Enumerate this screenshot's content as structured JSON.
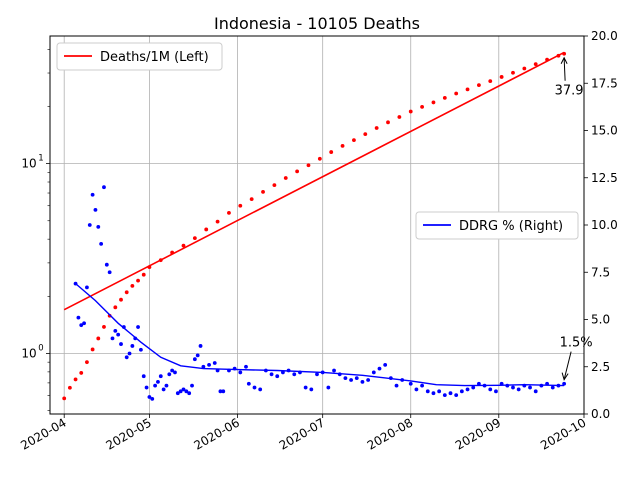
{
  "chart_data": {
    "type": "line",
    "title": "Indonesia - 10105 Deaths",
    "x_axis": {
      "type": "date",
      "range": [
        "2020-03-27",
        "2020-10-01"
      ],
      "ticks": [
        "2020-04-01",
        "2020-05-01",
        "2020-06-01",
        "2020-07-01",
        "2020-08-01",
        "2020-09-01",
        "2020-10-01"
      ],
      "tick_labels": [
        "2020-04",
        "2020-05",
        "2020-06",
        "2020-07",
        "2020-08",
        "2020-09",
        "2020-10"
      ]
    },
    "y_left": {
      "scale": "log",
      "range": [
        0.48,
        47
      ],
      "ticks": [
        1,
        10
      ],
      "tick_labels": [
        "10^0",
        "10^1"
      ]
    },
    "y_right": {
      "scale": "linear",
      "range": [
        0,
        20
      ],
      "ticks": [
        0,
        2.5,
        5,
        7.5,
        10,
        12.5,
        15,
        17.5,
        20
      ],
      "tick_labels": [
        "0.0",
        "2.5",
        "5.0",
        "7.5",
        "10.0",
        "12.5",
        "15.0",
        "17.5",
        "20.0"
      ]
    },
    "grid": true,
    "series": [
      {
        "name": "Deaths/1M (Left)",
        "axis": "left",
        "color": "#ff0000",
        "style": "line+points",
        "fit_line": {
          "x": [
            "2020-04-01",
            "2020-09-24"
          ],
          "y": [
            1.7,
            38.5
          ]
        },
        "points": [
          {
            "x": "2020-04-01",
            "y": 0.58
          },
          {
            "x": "2020-04-03",
            "y": 0.66
          },
          {
            "x": "2020-04-05",
            "y": 0.73
          },
          {
            "x": "2020-04-07",
            "y": 0.79
          },
          {
            "x": "2020-04-09",
            "y": 0.9
          },
          {
            "x": "2020-04-11",
            "y": 1.05
          },
          {
            "x": "2020-04-13",
            "y": 1.2
          },
          {
            "x": "2020-04-15",
            "y": 1.38
          },
          {
            "x": "2020-04-17",
            "y": 1.58
          },
          {
            "x": "2020-04-19",
            "y": 1.75
          },
          {
            "x": "2020-04-21",
            "y": 1.92
          },
          {
            "x": "2020-04-23",
            "y": 2.1
          },
          {
            "x": "2020-04-25",
            "y": 2.27
          },
          {
            "x": "2020-04-27",
            "y": 2.42
          },
          {
            "x": "2020-04-29",
            "y": 2.6
          },
          {
            "x": "2020-05-01",
            "y": 2.85
          },
          {
            "x": "2020-05-05",
            "y": 3.1
          },
          {
            "x": "2020-05-09",
            "y": 3.4
          },
          {
            "x": "2020-05-13",
            "y": 3.7
          },
          {
            "x": "2020-05-17",
            "y": 4.05
          },
          {
            "x": "2020-05-21",
            "y": 4.5
          },
          {
            "x": "2020-05-25",
            "y": 4.95
          },
          {
            "x": "2020-05-29",
            "y": 5.5
          },
          {
            "x": "2020-06-02",
            "y": 6.0
          },
          {
            "x": "2020-06-06",
            "y": 6.5
          },
          {
            "x": "2020-06-10",
            "y": 7.1
          },
          {
            "x": "2020-06-14",
            "y": 7.7
          },
          {
            "x": "2020-06-18",
            "y": 8.4
          },
          {
            "x": "2020-06-22",
            "y": 9.1
          },
          {
            "x": "2020-06-26",
            "y": 9.8
          },
          {
            "x": "2020-06-30",
            "y": 10.6
          },
          {
            "x": "2020-07-04",
            "y": 11.5
          },
          {
            "x": "2020-07-08",
            "y": 12.4
          },
          {
            "x": "2020-07-12",
            "y": 13.3
          },
          {
            "x": "2020-07-16",
            "y": 14.3
          },
          {
            "x": "2020-07-20",
            "y": 15.4
          },
          {
            "x": "2020-07-24",
            "y": 16.5
          },
          {
            "x": "2020-07-28",
            "y": 17.6
          },
          {
            "x": "2020-08-01",
            "y": 18.8
          },
          {
            "x": "2020-08-05",
            "y": 19.9
          },
          {
            "x": "2020-08-09",
            "y": 21.0
          },
          {
            "x": "2020-08-13",
            "y": 22.2
          },
          {
            "x": "2020-08-17",
            "y": 23.4
          },
          {
            "x": "2020-08-21",
            "y": 24.6
          },
          {
            "x": "2020-08-25",
            "y": 25.9
          },
          {
            "x": "2020-08-29",
            "y": 27.2
          },
          {
            "x": "2020-09-02",
            "y": 28.6
          },
          {
            "x": "2020-09-06",
            "y": 30.1
          },
          {
            "x": "2020-09-10",
            "y": 31.7
          },
          {
            "x": "2020-09-14",
            "y": 33.4
          },
          {
            "x": "2020-09-18",
            "y": 35.3
          },
          {
            "x": "2020-09-22",
            "y": 37.0
          },
          {
            "x": "2020-09-24",
            "y": 37.9
          }
        ]
      },
      {
        "name": "DDRG % (Right)",
        "axis": "right",
        "color": "#0000ff",
        "style": "line+points",
        "line": [
          {
            "x": "2020-04-05",
            "y": 6.9
          },
          {
            "x": "2020-04-12",
            "y": 6.0
          },
          {
            "x": "2020-04-20",
            "y": 4.8
          },
          {
            "x": "2020-04-28",
            "y": 3.8
          },
          {
            "x": "2020-05-05",
            "y": 3.0
          },
          {
            "x": "2020-05-12",
            "y": 2.55
          },
          {
            "x": "2020-05-20",
            "y": 2.4
          },
          {
            "x": "2020-06-01",
            "y": 2.35
          },
          {
            "x": "2020-06-15",
            "y": 2.3
          },
          {
            "x": "2020-07-01",
            "y": 2.2
          },
          {
            "x": "2020-07-15",
            "y": 2.05
          },
          {
            "x": "2020-08-01",
            "y": 1.75
          },
          {
            "x": "2020-08-10",
            "y": 1.55
          },
          {
            "x": "2020-08-20",
            "y": 1.5
          },
          {
            "x": "2020-09-01",
            "y": 1.52
          },
          {
            "x": "2020-09-10",
            "y": 1.55
          },
          {
            "x": "2020-09-24",
            "y": 1.5
          }
        ],
        "points": [
          {
            "x": "2020-04-05",
            "y": 6.9
          },
          {
            "x": "2020-04-06",
            "y": 5.1
          },
          {
            "x": "2020-04-07",
            "y": 4.7
          },
          {
            "x": "2020-04-08",
            "y": 4.8
          },
          {
            "x": "2020-04-09",
            "y": 6.7
          },
          {
            "x": "2020-04-10",
            "y": 10.0
          },
          {
            "x": "2020-04-11",
            "y": 11.6
          },
          {
            "x": "2020-04-12",
            "y": 10.8
          },
          {
            "x": "2020-04-13",
            "y": 9.9
          },
          {
            "x": "2020-04-14",
            "y": 9.0
          },
          {
            "x": "2020-04-15",
            "y": 12.0
          },
          {
            "x": "2020-04-16",
            "y": 7.9
          },
          {
            "x": "2020-04-17",
            "y": 7.5
          },
          {
            "x": "2020-04-18",
            "y": 4.0
          },
          {
            "x": "2020-04-19",
            "y": 4.4
          },
          {
            "x": "2020-04-20",
            "y": 4.2
          },
          {
            "x": "2020-04-21",
            "y": 3.7
          },
          {
            "x": "2020-04-22",
            "y": 4.6
          },
          {
            "x": "2020-04-23",
            "y": 3.0
          },
          {
            "x": "2020-04-24",
            "y": 3.2
          },
          {
            "x": "2020-04-25",
            "y": 3.6
          },
          {
            "x": "2020-04-26",
            "y": 4.0
          },
          {
            "x": "2020-04-27",
            "y": 4.6
          },
          {
            "x": "2020-04-28",
            "y": 3.4
          },
          {
            "x": "2020-04-29",
            "y": 2.0
          },
          {
            "x": "2020-04-30",
            "y": 1.4
          },
          {
            "x": "2020-05-01",
            "y": 0.9
          },
          {
            "x": "2020-05-02",
            "y": 0.8
          },
          {
            "x": "2020-05-03",
            "y": 1.5
          },
          {
            "x": "2020-05-04",
            "y": 1.7
          },
          {
            "x": "2020-05-05",
            "y": 2.0
          },
          {
            "x": "2020-05-06",
            "y": 1.3
          },
          {
            "x": "2020-05-07",
            "y": 1.5
          },
          {
            "x": "2020-05-08",
            "y": 2.1
          },
          {
            "x": "2020-05-09",
            "y": 2.3
          },
          {
            "x": "2020-05-10",
            "y": 2.2
          },
          {
            "x": "2020-05-11",
            "y": 1.1
          },
          {
            "x": "2020-05-12",
            "y": 1.2
          },
          {
            "x": "2020-05-13",
            "y": 1.3
          },
          {
            "x": "2020-05-14",
            "y": 1.2
          },
          {
            "x": "2020-05-15",
            "y": 1.1
          },
          {
            "x": "2020-05-16",
            "y": 1.5
          },
          {
            "x": "2020-05-17",
            "y": 2.9
          },
          {
            "x": "2020-05-18",
            "y": 3.1
          },
          {
            "x": "2020-05-19",
            "y": 3.6
          },
          {
            "x": "2020-05-20",
            "y": 2.5
          },
          {
            "x": "2020-05-22",
            "y": 2.6
          },
          {
            "x": "2020-05-24",
            "y": 2.7
          },
          {
            "x": "2020-05-25",
            "y": 2.3
          },
          {
            "x": "2020-05-26",
            "y": 1.2
          },
          {
            "x": "2020-05-27",
            "y": 1.2
          },
          {
            "x": "2020-05-29",
            "y": 2.3
          },
          {
            "x": "2020-05-31",
            "y": 2.4
          },
          {
            "x": "2020-06-02",
            "y": 2.2
          },
          {
            "x": "2020-06-04",
            "y": 2.5
          },
          {
            "x": "2020-06-05",
            "y": 1.6
          },
          {
            "x": "2020-06-07",
            "y": 1.4
          },
          {
            "x": "2020-06-09",
            "y": 1.3
          },
          {
            "x": "2020-06-11",
            "y": 2.3
          },
          {
            "x": "2020-06-13",
            "y": 2.1
          },
          {
            "x": "2020-06-15",
            "y": 2.0
          },
          {
            "x": "2020-06-17",
            "y": 2.2
          },
          {
            "x": "2020-06-19",
            "y": 2.3
          },
          {
            "x": "2020-06-21",
            "y": 2.1
          },
          {
            "x": "2020-06-23",
            "y": 2.2
          },
          {
            "x": "2020-06-25",
            "y": 1.4
          },
          {
            "x": "2020-06-27",
            "y": 1.3
          },
          {
            "x": "2020-06-29",
            "y": 2.1
          },
          {
            "x": "2020-07-01",
            "y": 2.2
          },
          {
            "x": "2020-07-03",
            "y": 1.4
          },
          {
            "x": "2020-07-05",
            "y": 2.3
          },
          {
            "x": "2020-07-07",
            "y": 2.1
          },
          {
            "x": "2020-07-09",
            "y": 1.9
          },
          {
            "x": "2020-07-11",
            "y": 1.8
          },
          {
            "x": "2020-07-13",
            "y": 1.9
          },
          {
            "x": "2020-07-15",
            "y": 1.7
          },
          {
            "x": "2020-07-17",
            "y": 1.8
          },
          {
            "x": "2020-07-19",
            "y": 2.2
          },
          {
            "x": "2020-07-21",
            "y": 2.4
          },
          {
            "x": "2020-07-23",
            "y": 2.6
          },
          {
            "x": "2020-07-25",
            "y": 1.9
          },
          {
            "x": "2020-07-27",
            "y": 1.5
          },
          {
            "x": "2020-07-29",
            "y": 1.8
          },
          {
            "x": "2020-08-01",
            "y": 1.6
          },
          {
            "x": "2020-08-03",
            "y": 1.3
          },
          {
            "x": "2020-08-05",
            "y": 1.5
          },
          {
            "x": "2020-08-07",
            "y": 1.2
          },
          {
            "x": "2020-08-09",
            "y": 1.1
          },
          {
            "x": "2020-08-11",
            "y": 1.2
          },
          {
            "x": "2020-08-13",
            "y": 1.0
          },
          {
            "x": "2020-08-15",
            "y": 1.1
          },
          {
            "x": "2020-08-17",
            "y": 1.0
          },
          {
            "x": "2020-08-19",
            "y": 1.2
          },
          {
            "x": "2020-08-21",
            "y": 1.3
          },
          {
            "x": "2020-08-23",
            "y": 1.4
          },
          {
            "x": "2020-08-25",
            "y": 1.6
          },
          {
            "x": "2020-08-27",
            "y": 1.5
          },
          {
            "x": "2020-08-29",
            "y": 1.3
          },
          {
            "x": "2020-08-31",
            "y": 1.2
          },
          {
            "x": "2020-09-02",
            "y": 1.6
          },
          {
            "x": "2020-09-04",
            "y": 1.5
          },
          {
            "x": "2020-09-06",
            "y": 1.4
          },
          {
            "x": "2020-09-08",
            "y": 1.3
          },
          {
            "x": "2020-09-10",
            "y": 1.5
          },
          {
            "x": "2020-09-12",
            "y": 1.4
          },
          {
            "x": "2020-09-14",
            "y": 1.2
          },
          {
            "x": "2020-09-16",
            "y": 1.5
          },
          {
            "x": "2020-09-18",
            "y": 1.6
          },
          {
            "x": "2020-09-20",
            "y": 1.4
          },
          {
            "x": "2020-09-22",
            "y": 1.5
          },
          {
            "x": "2020-09-24",
            "y": 1.6
          }
        ]
      }
    ],
    "annotations": [
      {
        "text": "37.9",
        "x": "2020-09-24",
        "y": 37.9,
        "axis": "left"
      },
      {
        "text": "1.5%",
        "x": "2020-09-24",
        "y": 1.5,
        "axis": "right"
      }
    ],
    "legends": [
      {
        "series": "Deaths/1M (Left)",
        "placement": "upper-left"
      },
      {
        "series": "DDRG % (Right)",
        "placement": "center-right"
      }
    ]
  }
}
